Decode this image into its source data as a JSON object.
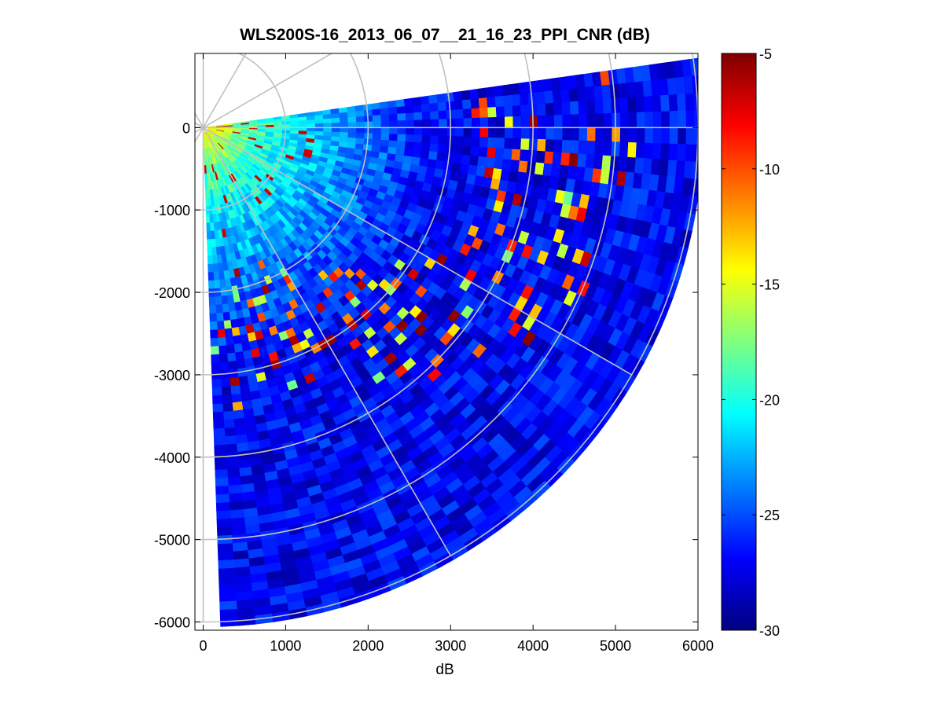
{
  "chart_data": {
    "type": "heatmap",
    "subtype": "polar-ppi-scan",
    "title": "WLS200S-16_2013_06_07__21_16_23_PPI_CNR (dB)",
    "xlabel": "dB",
    "ylabel": "",
    "xlim": [
      -100,
      6000
    ],
    "ylim": [
      -6100,
      900
    ],
    "xticks": [
      0,
      1000,
      2000,
      3000,
      4000,
      5000,
      6000
    ],
    "xtick_labels": [
      "0",
      "1000",
      "2000",
      "3000",
      "4000",
      "5000",
      "6000"
    ],
    "yticks": [
      0,
      -1000,
      -2000,
      -3000,
      -4000,
      -5000,
      -6000
    ],
    "ytick_labels": [
      "0",
      "-1000",
      "-2000",
      "-3000",
      "-4000",
      "-5000",
      "-6000"
    ],
    "polar_grid": {
      "range_rings": [
        1000,
        2000,
        3000,
        4000,
        5000,
        6000
      ],
      "angle_step_deg": 30
    },
    "scan": {
      "azimuth_start_deg": 8,
      "azimuth_end_deg": -88,
      "max_range": 6000,
      "range_gate": 100,
      "angle_step_deg": 2
    },
    "colorbar": {
      "colormap": "jet",
      "clim": [
        -30,
        -5
      ],
      "ticks": [
        -5,
        -10,
        -15,
        -20,
        -25,
        -30
      ],
      "tick_labels": [
        "-5",
        "-10",
        "-15",
        "-20",
        "-25",
        "-30"
      ]
    },
    "field_description": {
      "background_cnr_near_db": -12,
      "background_cnr_far_db": -27,
      "high_cnr_band_center_range": 3500,
      "high_cnr_band_values_db": [
        -5,
        -18
      ]
    }
  }
}
